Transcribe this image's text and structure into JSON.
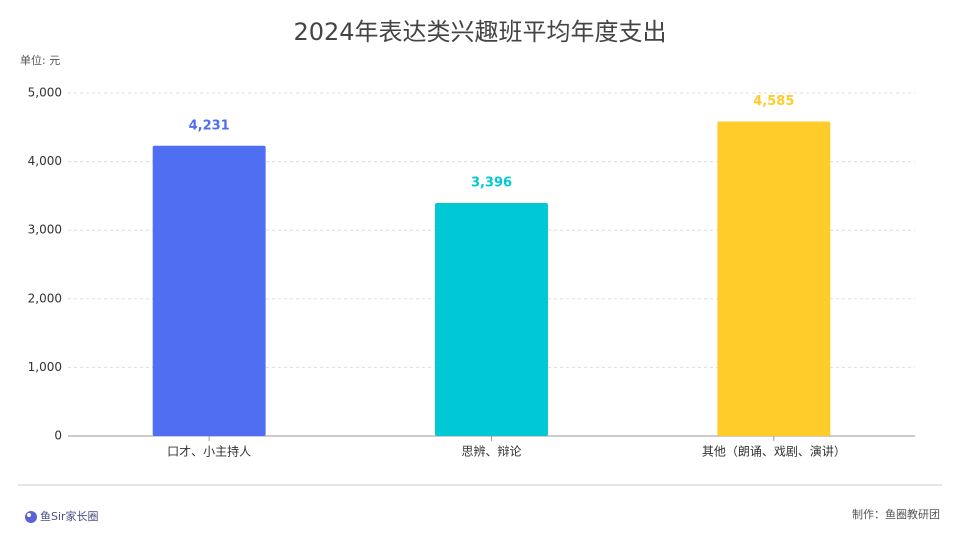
{
  "chart_data": {
    "type": "bar",
    "title": "2024年表达类兴趣班平均年度支出",
    "unit_label": "单位: 元",
    "categories": [
      "口才、小主持人",
      "思辨、辩论",
      "其他（朗诵、戏剧、演讲）"
    ],
    "values": [
      4231,
      3396,
      4585
    ],
    "value_labels": [
      "4,231",
      "3,396",
      "4,585"
    ],
    "colors": [
      "#4f6ef2",
      "#00c8d4",
      "#ffcc29"
    ],
    "ylim": [
      0,
      5000
    ],
    "yticks": [
      0,
      {
        "value": 1000,
        "label": "1,000"
      },
      {
        "value": 2000,
        "label": "2,000"
      },
      {
        "value": 3000,
        "label": "3,000"
      },
      {
        "value": 4000,
        "label": "4,000"
      },
      {
        "value": 5000,
        "label": "5,000"
      }
    ],
    "grid": true
  },
  "footer": {
    "brand": "鱼Sir家长圈",
    "credit": "制作：鱼圈教研团"
  }
}
